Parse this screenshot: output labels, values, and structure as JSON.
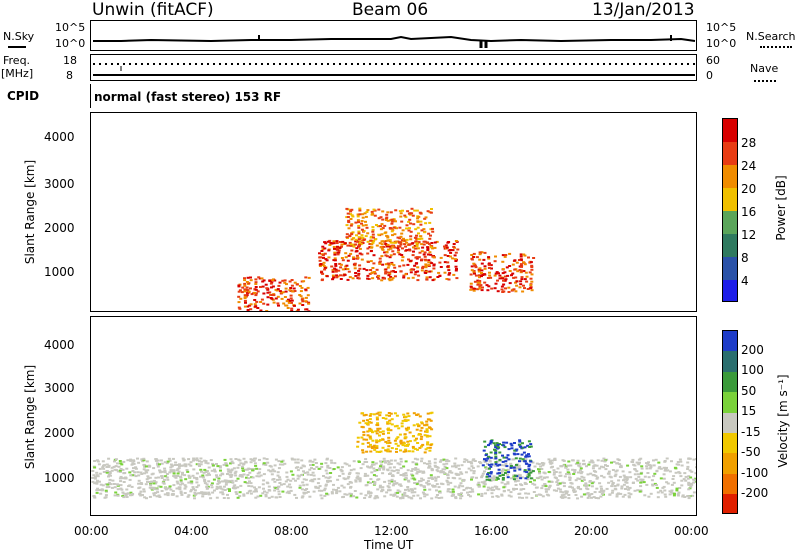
{
  "header": {
    "station": "Unwin (fitACF)",
    "beam": "Beam 06",
    "date": "13/Jan/2013"
  },
  "strips": {
    "nsky_label": "N.Sky",
    "nsearch_label": "N.Search",
    "nsky_ticks": [
      "10^5",
      "10^0"
    ],
    "nsearch_ticks": [
      "10^5",
      "10^0"
    ],
    "freq_label": "Freq.",
    "freq_unit": "[MHz]",
    "freq_ticks": [
      "18",
      "8"
    ],
    "nave_label": "Nave",
    "nave_ticks": [
      "60",
      "0"
    ],
    "cpid_label": "CPID",
    "cpid_value": "normal (fast stereo) 153 RF"
  },
  "chart_data": [
    {
      "type": "heatmap",
      "parameter": "Power",
      "ylabel": "Slant Range [km]",
      "xlabel": "",
      "ylim": [
        180,
        4500
      ],
      "yticks": [
        "1000",
        "2000",
        "3000",
        "4000"
      ],
      "colorbar": {
        "label": "Power [dB]",
        "ticks": [
          "4",
          "8",
          "12",
          "16",
          "20",
          "24",
          "28"
        ],
        "colors": [
          "#1e1ee8",
          "#2a52a8",
          "#2f7a5f",
          "#5aa55a",
          "#f0c000",
          "#f08c00",
          "#e83c14",
          "#d80000"
        ]
      },
      "regions": [
        {
          "t_start": 5.8,
          "t_end": 8.6,
          "range_km": 500,
          "power_db": 28
        },
        {
          "t_start": 9.0,
          "t_end": 14.5,
          "range_km": 1300,
          "power_db": 26
        },
        {
          "t_start": 15.0,
          "t_end": 17.5,
          "range_km": 1050,
          "power_db": 28
        },
        {
          "t_start": 10.0,
          "t_end": 13.5,
          "range_km": 2000,
          "power_db": 22
        }
      ]
    },
    {
      "type": "heatmap",
      "parameter": "Velocity",
      "ylabel": "Slant Range [km]",
      "xlabel": "Time UT",
      "ylim": [
        180,
        4500
      ],
      "yticks": [
        "1000",
        "2000",
        "3000",
        "4000"
      ],
      "xticks": [
        "00:00",
        "04:00",
        "08:00",
        "12:00",
        "16:00",
        "20:00",
        "00:00"
      ],
      "colorbar": {
        "label": "Velocity [m s⁻¹]",
        "ticks": [
          "200",
          "100",
          "50",
          "15",
          "-15",
          "-50",
          "-100",
          "-200"
        ],
        "colors": [
          "#1e3cc8",
          "#2a6e6e",
          "#3a9a3a",
          "#7ad23a",
          "#c8c8c0",
          "#f0c800",
          "#f0a000",
          "#f07000",
          "#e02000"
        ]
      },
      "regions": [
        {
          "t_start": 0.0,
          "t_end": 24.0,
          "range_km": 1000,
          "velocity_ms": 0
        },
        {
          "t_start": 15.5,
          "t_end": 17.5,
          "range_km": 1400,
          "velocity_ms": 150
        },
        {
          "t_start": 10.5,
          "t_end": 13.5,
          "range_km": 2000,
          "velocity_ms": -60
        }
      ]
    }
  ]
}
